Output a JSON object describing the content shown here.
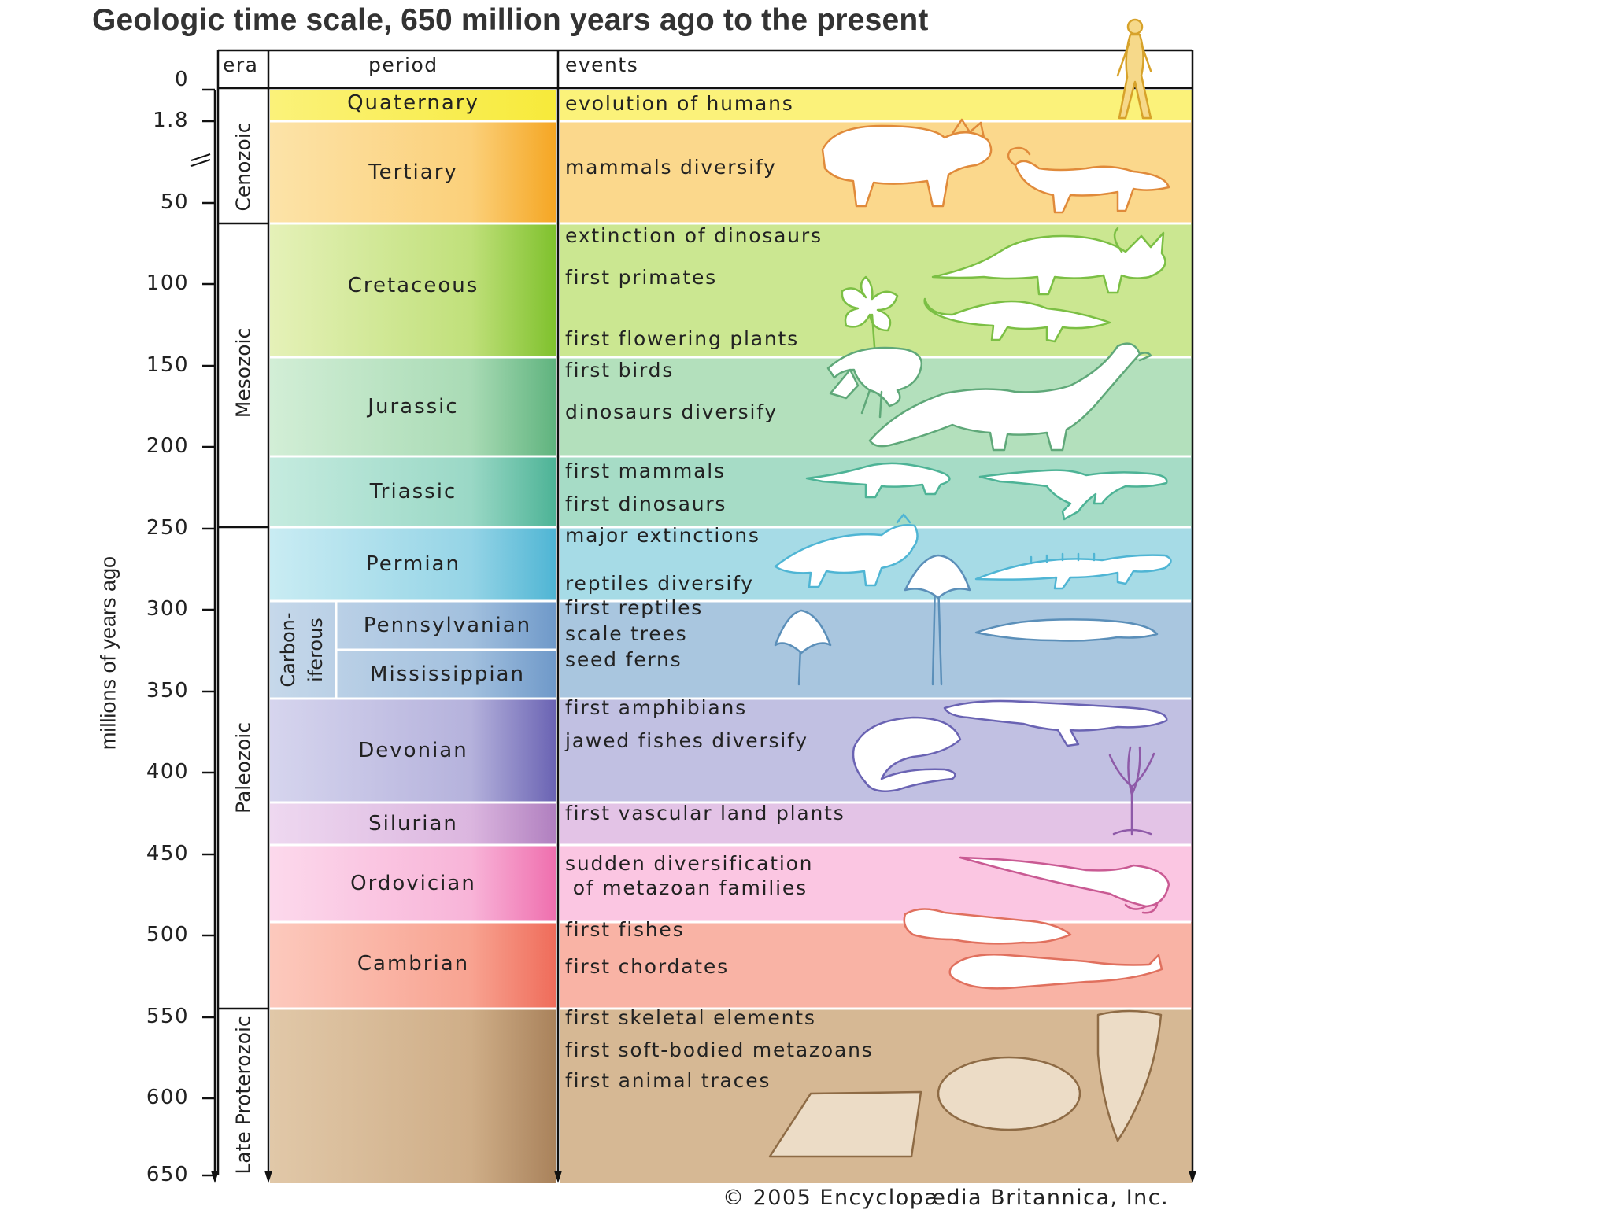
{
  "title": "Geologic time scale, 650 million years ago to the present",
  "headers": {
    "era": "era",
    "period": "period",
    "events": "events"
  },
  "y_axis_label": "millions of years ago",
  "ticks": [
    "0",
    "1.8",
    "50",
    "100",
    "150",
    "200",
    "250",
    "300",
    "350",
    "400",
    "450",
    "500",
    "550",
    "600",
    "650"
  ],
  "eras": [
    {
      "name": "Cenozoic"
    },
    {
      "name": "Mesozoic"
    },
    {
      "name": "Paleozoic"
    },
    {
      "name": "Late Proterozoic"
    }
  ],
  "carboniferous": {
    "line1": "Carbon-",
    "line2": "iferous"
  },
  "periods": [
    {
      "name": "Quaternary",
      "color": "#fbf27a"
    },
    {
      "name": "Tertiary",
      "color": "#fbd88c"
    },
    {
      "name": "Cretaceous",
      "color": "#cbe791"
    },
    {
      "name": "Jurassic",
      "color": "#b3e0bc"
    },
    {
      "name": "Triassic",
      "color": "#a6dcc6"
    },
    {
      "name": "Permian",
      "color": "#a6dbe6"
    },
    {
      "name": "Pennsylvanian",
      "color": "#a9c6df"
    },
    {
      "name": "Mississippian",
      "color": "#a9c6df"
    },
    {
      "name": "Devonian",
      "color": "#c1c0e2"
    },
    {
      "name": "Silurian",
      "color": "#e3c3e6"
    },
    {
      "name": "Ordovician",
      "color": "#fbc6e2"
    },
    {
      "name": "Cambrian",
      "color": "#f9b3a5"
    },
    {
      "name": "",
      "color": "#d6b894"
    }
  ],
  "events": [
    "evolution of humans",
    "mammals diversify",
    "extinction of dinosaurs",
    "first primates",
    "first flowering plants",
    "first birds",
    "dinosaurs diversify",
    "first mammals",
    "first dinosaurs",
    "major extinctions",
    "reptiles diversify",
    "first reptiles",
    "scale trees",
    "seed ferns",
    "first amphibians",
    "jawed fishes diversify",
    "first vascular land plants",
    "sudden diversification",
    " of metazoan families",
    "first fishes",
    "first chordates",
    "first skeletal elements",
    "first soft-bodied metazoans",
    "first animal traces"
  ],
  "credit": "© 2005 Encyclopædia Britannica, Inc.",
  "illustrations": [
    "human-figure-icon",
    "mammal-icon",
    "dinosaur-icon",
    "flowering-plant-icon",
    "bird-icon",
    "sauropod-icon",
    "early-mammal-icon",
    "early-dinosaur-icon",
    "reptile-icon",
    "scale-tree-icon",
    "seed-fern-icon",
    "amphibian-icon",
    "jawed-fish-icon",
    "vascular-plant-icon",
    "nautiloid-icon",
    "early-fish-icon",
    "chordate-icon",
    "shell-icon",
    "trace-fossil-icon"
  ]
}
